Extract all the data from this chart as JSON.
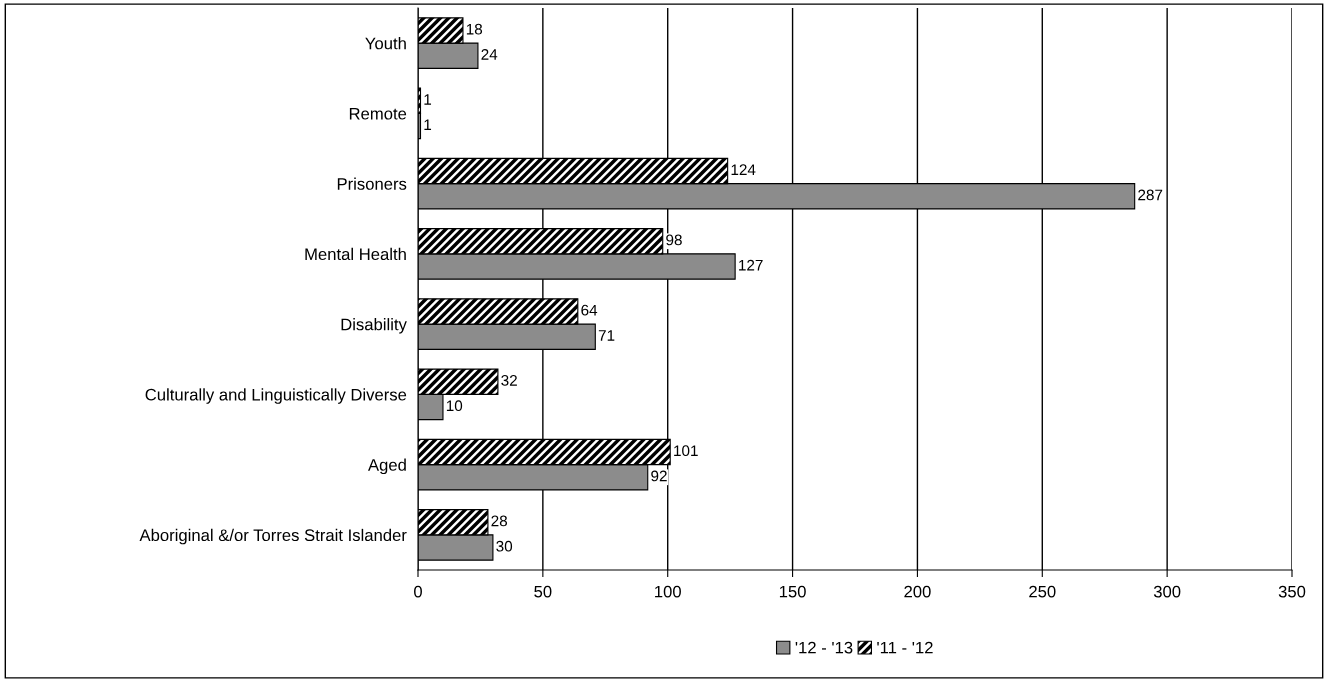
{
  "chart_data": {
    "type": "bar",
    "orientation": "horizontal",
    "categories": [
      "Youth",
      "Remote",
      "Prisoners",
      "Mental Health",
      "Disability",
      "Culturally and Linguistically Diverse",
      "Aged",
      "Aboriginal &/or Torres Strait Islander"
    ],
    "series": [
      {
        "name": "'12 - '13",
        "color": "#8c8c8c",
        "values": [
          24,
          1,
          287,
          127,
          71,
          10,
          92,
          30
        ]
      },
      {
        "name": "'11 - '12",
        "color": "#000000",
        "values": [
          18,
          1,
          124,
          98,
          64,
          32,
          101,
          28
        ]
      }
    ],
    "xlim": [
      0,
      350
    ],
    "xticks": [
      0,
      50,
      100,
      150,
      200,
      250,
      300,
      350
    ],
    "grid": "x",
    "legend": "bottom",
    "data_labels": true
  }
}
